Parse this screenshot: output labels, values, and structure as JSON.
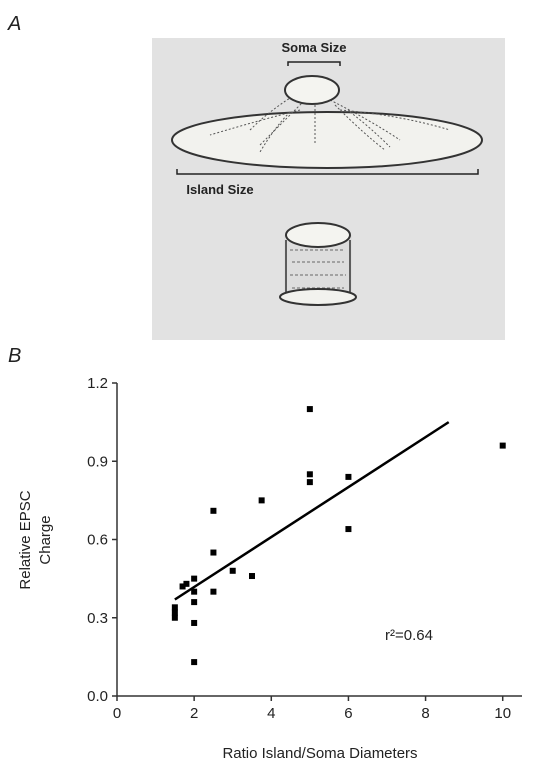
{
  "panel_a": {
    "label": "A",
    "soma_label": "Soma Size",
    "island_label": "Island Size"
  },
  "chart_data": {
    "type": "scatter",
    "panel_label": "B",
    "xlabel": "Ratio Island/Soma Diameters",
    "ylabel": [
      "Relative EPSC",
      "Charge"
    ],
    "annotation": "r²=0.64",
    "color": "#000000",
    "x": [
      1.5,
      1.5,
      1.5,
      1.7,
      1.8,
      2.0,
      2.0,
      2.0,
      2.0,
      2.0,
      2.5,
      2.5,
      2.5,
      3.0,
      3.5,
      3.75,
      5,
      5,
      5,
      6,
      6,
      10
    ],
    "values": [
      0.3,
      0.32,
      0.34,
      0.42,
      0.43,
      0.45,
      0.4,
      0.36,
      0.28,
      0.13,
      0.71,
      0.55,
      0.4,
      0.48,
      0.46,
      0.75,
      1.1,
      0.85,
      0.82,
      0.84,
      0.64,
      0.96
    ],
    "fit": {
      "x": [
        1.5,
        8.6
      ],
      "values": [
        0.37,
        1.05
      ]
    },
    "xlim": [
      0,
      10.5
    ],
    "ylim": [
      0,
      1.2
    ],
    "xticks": [
      0,
      2,
      4,
      6,
      8,
      10
    ],
    "yticks": [
      {
        "value": 0,
        "label": "0.0"
      },
      0.3,
      0.6,
      0.9,
      1.2
    ]
  }
}
